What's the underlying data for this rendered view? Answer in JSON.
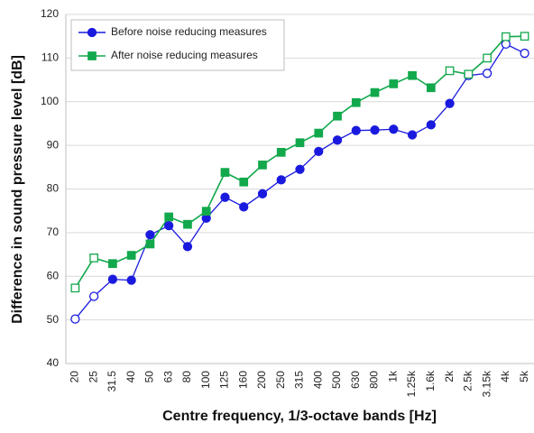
{
  "chart_data": {
    "type": "line",
    "x_label": "Centre frequency, 1/3-octave bands [Hz]",
    "y_label": "Difference in sound pressure level [dB]",
    "categories": [
      "20",
      "25",
      "31.5",
      "40",
      "50",
      "63",
      "80",
      "100",
      "125",
      "160",
      "200",
      "250",
      "315",
      "400",
      "500",
      "630",
      "800",
      "1k",
      "1.25k",
      "1.6k",
      "2k",
      "2.5k",
      "3.15k",
      "4k",
      "5k"
    ],
    "series": [
      {
        "name": "Before noise reducing measures",
        "color": "#1a1adf",
        "marker": "circle",
        "values": [
          50.2,
          55.4,
          59.3,
          59.1,
          69.5,
          71.6,
          66.8,
          73.3,
          78.1,
          75.9,
          78.9,
          82.1,
          84.5,
          88.6,
          91.2,
          93.4,
          93.5,
          93.7,
          92.4,
          94.7,
          99.6,
          106.0,
          106.5,
          113.2,
          111.1
        ],
        "filled": [
          false,
          false,
          true,
          true,
          true,
          true,
          true,
          true,
          true,
          true,
          true,
          true,
          true,
          true,
          true,
          true,
          true,
          true,
          true,
          true,
          true,
          false,
          false,
          false,
          false
        ]
      },
      {
        "name": "After noise reducing measures",
        "color": "#12a84c",
        "marker": "square",
        "values": [
          57.3,
          64.2,
          62.9,
          64.8,
          67.4,
          73.6,
          71.9,
          74.9,
          83.8,
          81.6,
          85.5,
          88.4,
          90.6,
          92.8,
          96.7,
          99.8,
          102.1,
          104.1,
          106.0,
          103.2,
          107.1,
          106.3,
          110.0,
          114.9,
          115.0
        ],
        "filled": [
          false,
          false,
          true,
          true,
          true,
          true,
          true,
          true,
          true,
          true,
          true,
          true,
          true,
          true,
          true,
          true,
          true,
          true,
          true,
          true,
          false,
          false,
          false,
          false,
          false
        ]
      }
    ],
    "ylim": [
      40,
      120
    ],
    "yticks": [
      40,
      50,
      60,
      70,
      80,
      90,
      100,
      110,
      120
    ],
    "grid": true,
    "legend": "top-left"
  }
}
